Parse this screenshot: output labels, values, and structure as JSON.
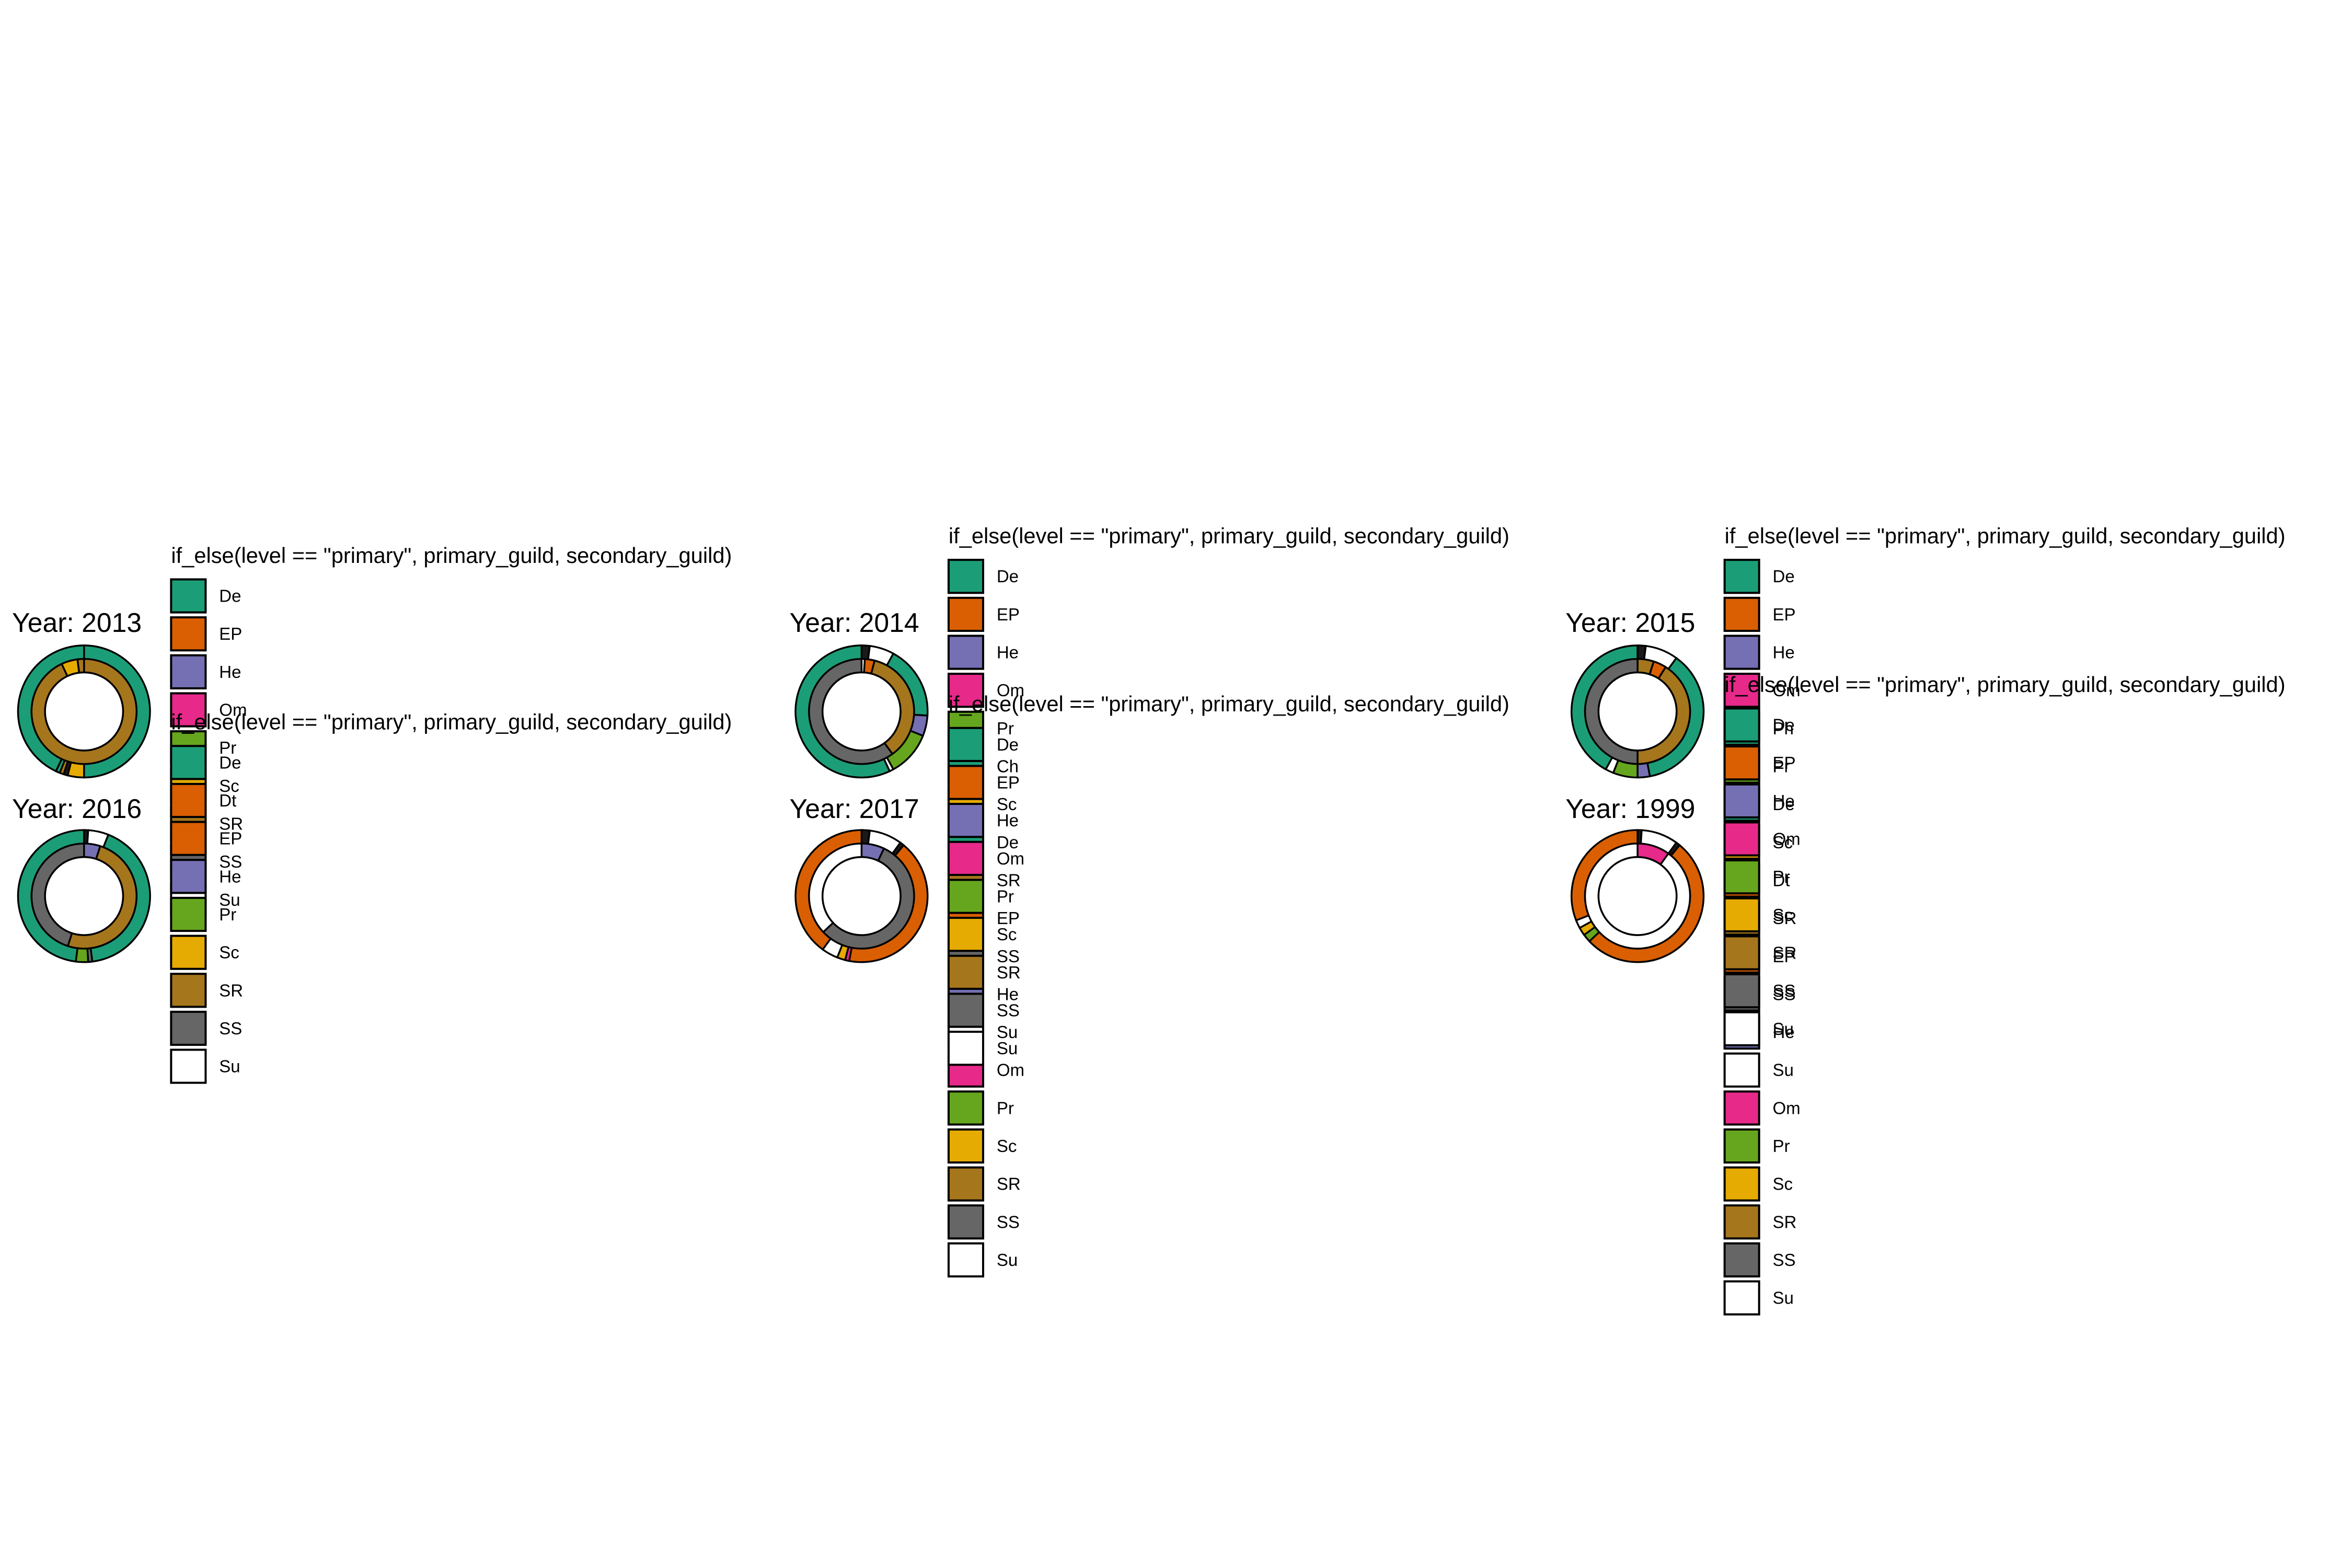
{
  "legend_title": "if_else(level == \"primary\", primary_guild, secondary_guild)",
  "colors": {
    "De": "#1b9e77",
    "EP": "#d95f02",
    "He": "#7570b3",
    "Om": "#e7298a",
    "Pr": "#66a61e",
    "Sc": "#e6ab02",
    "SR": "#a6761d",
    "SS": "#666666",
    "Su": "#ffffff",
    "Ch": "#1b9e77",
    "Dt": "#d95f02",
    "Ph": "#1b9e77",
    "dark": "#1a1a1a"
  },
  "chart_data": [
    {
      "type": "pie",
      "subtype": "donut-two-ring",
      "title": "Year: 2013",
      "legend_title": "if_else(level == \"primary\", primary_guild, secondary_guild)",
      "legend": [
        "De",
        "EP",
        "He",
        "Om",
        "Pr",
        "Sc",
        "SR",
        "SS",
        "Su"
      ],
      "outer": [
        {
          "label": "De",
          "value": 0.5,
          "color": "#1b9e77"
        },
        {
          "label": "Sc",
          "value": 0.04,
          "color": "#e6ab02"
        },
        {
          "label": "dark",
          "value": 0.01,
          "color": "#1a1a1a"
        },
        {
          "label": "SR",
          "value": 0.01,
          "color": "#a6761d"
        },
        {
          "label": "De",
          "value": 0.01,
          "color": "#1b9e77"
        },
        {
          "label": "De",
          "value": 0.43,
          "color": "#1b9e77"
        }
      ],
      "inner": [
        {
          "label": "SR",
          "value": 0.93,
          "color": "#a6761d"
        },
        {
          "label": "Sc",
          "value": 0.05,
          "color": "#e6ab02"
        },
        {
          "label": "SR",
          "value": 0.02,
          "color": "#a6761d"
        }
      ]
    },
    {
      "type": "pie",
      "subtype": "donut-two-ring",
      "title": "Year: 2014",
      "legend_title": "if_else(level == \"primary\", primary_guild, secondary_guild)",
      "legend": [
        "De",
        "EP",
        "He",
        "Om",
        "Pr",
        "Ch",
        "Sc",
        "De",
        "SR",
        "EP",
        "SS",
        "He",
        "Su",
        "Om",
        "Pr",
        "Sc",
        "SR",
        "SS",
        "Su"
      ],
      "outer": [
        {
          "label": "dark",
          "value": 0.02,
          "color": "#1a1a1a"
        },
        {
          "label": "Su",
          "value": 0.06,
          "color": "#ffffff"
        },
        {
          "label": "De",
          "value": 0.18,
          "color": "#1b9e77"
        },
        {
          "label": "He",
          "value": 0.05,
          "color": "#7570b3"
        },
        {
          "label": "Pr",
          "value": 0.11,
          "color": "#66a61e"
        },
        {
          "label": "Su",
          "value": 0.01,
          "color": "#ffffff"
        },
        {
          "label": "De",
          "value": 0.57,
          "color": "#1b9e77"
        }
      ],
      "inner": [
        {
          "label": "Su",
          "value": 0.01,
          "color": "#ffffff"
        },
        {
          "label": "EP",
          "value": 0.03,
          "color": "#d95f02"
        },
        {
          "label": "SR",
          "value": 0.36,
          "color": "#a6761d"
        },
        {
          "label": "SS",
          "value": 0.6,
          "color": "#666666"
        }
      ]
    },
    {
      "type": "pie",
      "subtype": "donut-two-ring",
      "title": "Year: 2015",
      "legend_title": "if_else(level == \"primary\", primary_guild, secondary_guild)",
      "legend": [
        "De",
        "EP",
        "He",
        "Om",
        "Ph",
        "Pr",
        "De",
        "Sc",
        "Dt",
        "SR",
        "EP",
        "SS",
        "He",
        "Su",
        "Om",
        "Pr",
        "Sc",
        "SR",
        "SS",
        "Su"
      ],
      "outer": [
        {
          "label": "dark",
          "value": 0.02,
          "color": "#1a1a1a"
        },
        {
          "label": "Su",
          "value": 0.08,
          "color": "#ffffff"
        },
        {
          "label": "De",
          "value": 0.37,
          "color": "#1b9e77"
        },
        {
          "label": "He",
          "value": 0.03,
          "color": "#7570b3"
        },
        {
          "label": "Pr",
          "value": 0.06,
          "color": "#66a61e"
        },
        {
          "label": "Su",
          "value": 0.02,
          "color": "#ffffff"
        },
        {
          "label": "De",
          "value": 0.42,
          "color": "#1b9e77"
        }
      ],
      "inner": [
        {
          "label": "SR",
          "value": 0.05,
          "color": "#a6761d"
        },
        {
          "label": "EP",
          "value": 0.04,
          "color": "#d95f02"
        },
        {
          "label": "SR",
          "value": 0.41,
          "color": "#a6761d"
        },
        {
          "label": "SS",
          "value": 0.5,
          "color": "#666666"
        }
      ]
    },
    {
      "type": "pie",
      "subtype": "donut-two-ring",
      "title": "Year: 2016",
      "legend_title": "if_else(level == \"primary\", primary_guild, secondary_guild)",
      "legend": [
        "De",
        "Dt",
        "EP",
        "He",
        "Pr",
        "Sc",
        "SR",
        "SS",
        "Su"
      ],
      "outer": [
        {
          "label": "dark",
          "value": 0.01,
          "color": "#1a1a1a"
        },
        {
          "label": "Su",
          "value": 0.05,
          "color": "#ffffff"
        },
        {
          "label": "De",
          "value": 0.42,
          "color": "#1b9e77"
        },
        {
          "label": "SS",
          "value": 0.01,
          "color": "#666666"
        },
        {
          "label": "Pr",
          "value": 0.03,
          "color": "#66a61e"
        },
        {
          "label": "De",
          "value": 0.48,
          "color": "#1b9e77"
        }
      ],
      "inner": [
        {
          "label": "He",
          "value": 0.05,
          "color": "#7570b3"
        },
        {
          "label": "SR",
          "value": 0.5,
          "color": "#a6761d"
        },
        {
          "label": "SS",
          "value": 0.45,
          "color": "#666666"
        }
      ]
    },
    {
      "type": "pie",
      "subtype": "donut-two-ring",
      "title": "Year: 2017",
      "legend_title": "if_else(level == \"primary\", primary_guild, secondary_guild)",
      "legend": [
        "De",
        "EP",
        "He",
        "Om",
        "Pr",
        "Sc",
        "SR",
        "SS",
        "Su"
      ],
      "outer": [
        {
          "label": "dark",
          "value": 0.02,
          "color": "#1a1a1a"
        },
        {
          "label": "Su",
          "value": 0.08,
          "color": "#ffffff"
        },
        {
          "label": "dark",
          "value": 0.01,
          "color": "#1a1a1a"
        },
        {
          "label": "EP",
          "value": 0.42,
          "color": "#d95f02"
        },
        {
          "label": "Om",
          "value": 0.01,
          "color": "#e7298a"
        },
        {
          "label": "Sc",
          "value": 0.02,
          "color": "#e6ab02"
        },
        {
          "label": "Su",
          "value": 0.04,
          "color": "#ffffff"
        },
        {
          "label": "EP",
          "value": 0.4,
          "color": "#d95f02"
        }
      ],
      "inner": [
        {
          "label": "He",
          "value": 0.07,
          "color": "#7570b3"
        },
        {
          "label": "SS",
          "value": 0.56,
          "color": "#666666"
        },
        {
          "label": "Su",
          "value": 0.37,
          "color": "#ffffff"
        }
      ]
    },
    {
      "type": "pie",
      "subtype": "donut-two-ring",
      "title": "Year: 1999",
      "legend_title": "if_else(level == \"primary\", primary_guild, secondary_guild)",
      "legend": [
        "De",
        "EP",
        "He",
        "Om",
        "Pr",
        "Sc",
        "SR",
        "SS",
        "Su"
      ],
      "outer": [
        {
          "label": "dark",
          "value": 0.01,
          "color": "#1a1a1a"
        },
        {
          "label": "Su",
          "value": 0.09,
          "color": "#ffffff"
        },
        {
          "label": "dark",
          "value": 0.01,
          "color": "#1a1a1a"
        },
        {
          "label": "EP",
          "value": 0.52,
          "color": "#d95f02"
        },
        {
          "label": "Pr",
          "value": 0.02,
          "color": "#66a61e"
        },
        {
          "label": "Sc",
          "value": 0.02,
          "color": "#e6ab02"
        },
        {
          "label": "Su",
          "value": 0.02,
          "color": "#ffffff"
        },
        {
          "label": "EP",
          "value": 0.31,
          "color": "#d95f02"
        }
      ],
      "inner": [
        {
          "label": "Om",
          "value": 0.1,
          "color": "#e7298a"
        },
        {
          "label": "Su",
          "value": 0.9,
          "color": "#ffffff"
        }
      ]
    }
  ]
}
